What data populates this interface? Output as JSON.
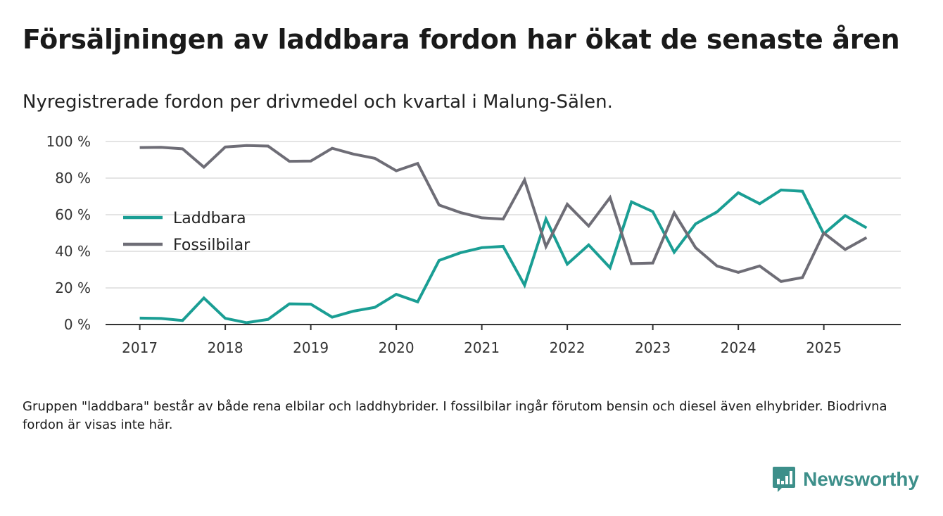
{
  "title": "Försäljningen av laddbara fordon har ökat de senaste åren",
  "subtitle": "Nyregistrerade fordon per drivmedel och kvartal i Malung-Sälen.",
  "note": "Gruppen \"laddbara\" består av både rena elbilar och laddhybrider. I fossilbilar ingår förutom bensin och diesel även elhybrider. Biodrivna fordon är visas inte här.",
  "brand": {
    "name": "Newsworthy",
    "logo_icon": "bar-chart-bubble-icon",
    "color": "#3d8f8a"
  },
  "chart_data": {
    "type": "line",
    "title": "Försäljningen av laddbara fordon har ökat de senaste åren",
    "xlabel": "",
    "ylabel": "",
    "ylim": [
      0,
      100
    ],
    "yticks": [
      0,
      20,
      40,
      60,
      80,
      100
    ],
    "ytick_labels": [
      "0 %",
      "20 %",
      "40 %",
      "60 %",
      "80 %",
      "100 %"
    ],
    "xticks": [
      2017,
      2018,
      2019,
      2020,
      2021,
      2022,
      2023,
      2024,
      2025
    ],
    "xlim": [
      2016.6,
      2025.9
    ],
    "grid": true,
    "legend_position": "left",
    "x": [
      2017.0,
      2017.25,
      2017.5,
      2017.75,
      2018.0,
      2018.25,
      2018.5,
      2018.75,
      2019.0,
      2019.25,
      2019.5,
      2019.75,
      2020.0,
      2020.25,
      2020.5,
      2020.75,
      2021.0,
      2021.25,
      2021.5,
      2021.75,
      2022.0,
      2022.25,
      2022.5,
      2022.75,
      2023.0,
      2023.25,
      2023.5,
      2023.75,
      2024.0,
      2024.25,
      2024.5,
      2024.75,
      2025.0,
      2025.25,
      2025.5
    ],
    "series": [
      {
        "name": "Laddbara",
        "color": "#1a9e94",
        "values": [
          3.5,
          3.3,
          2.2,
          14.5,
          3.4,
          1.0,
          2.8,
          11.3,
          11.1,
          4.0,
          7.3,
          9.4,
          16.5,
          12.4,
          35.0,
          39.2,
          42.0,
          42.7,
          21.5,
          57.7,
          33.0,
          43.5,
          31.0,
          67.0,
          61.7,
          39.5,
          55.0,
          61.5,
          72.0,
          66.0,
          73.5,
          72.8,
          49.5,
          59.5,
          52.8
        ]
      },
      {
        "name": "Fossilbilar",
        "color": "#6e6d76",
        "values": [
          96.7,
          96.8,
          96.0,
          86.0,
          97.0,
          97.8,
          97.5,
          89.2,
          89.3,
          96.3,
          93.1,
          90.8,
          84.0,
          88.0,
          65.3,
          61.2,
          58.3,
          57.6,
          79.0,
          42.6,
          65.7,
          53.8,
          69.4,
          33.3,
          33.6,
          61.0,
          42.0,
          32.0,
          28.5,
          32.0,
          23.5,
          25.7,
          50.0,
          41.0,
          47.5
        ]
      }
    ]
  }
}
